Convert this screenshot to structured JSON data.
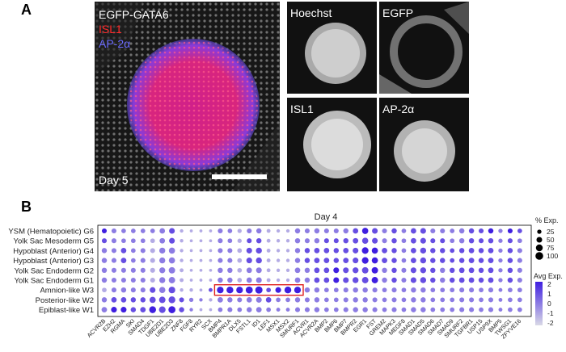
{
  "panelA": {
    "label": "A",
    "main": {
      "lines": [
        "EGFP-GATA6",
        "ISL1",
        "AP-2α"
      ],
      "line_colors": [
        "#ffffff",
        "#ff2a2a",
        "#6a6aff"
      ],
      "day": "Day 5"
    },
    "tiles": [
      "Hoechst",
      "EGFP",
      "ISL1",
      "AP-2α"
    ]
  },
  "panelB": {
    "label": "B",
    "title": "Day 4",
    "size_legend": {
      "title": "% Exp.",
      "values": [
        "25",
        "50",
        "75",
        "100"
      ]
    },
    "color_legend": {
      "title": "Avg Exp.",
      "ticks": [
        "2",
        "1",
        "0",
        "-1",
        "-2"
      ],
      "low_color": "#d9d9e6",
      "high_color": "#3f1fe0"
    },
    "highlight_color": "#e02020"
  },
  "chart_data": {
    "type": "dot-plot",
    "title": "Day 4",
    "rows": [
      "YSM (Hematopoietic) G6",
      "Yolk Sac Mesoderm G5",
      "Hypoblast (Anterior) G4",
      "Hypoblast (Anterior) G3",
      "Yolk Sac Endoderm G2",
      "Yolk Sac Endoderm G1",
      "Amnion-like W3",
      "Posterior-like W2",
      "Epiblast-like W1"
    ],
    "genes": [
      "ACVR2B",
      "EZH2",
      "RGMA",
      "SKI",
      "SMAD4",
      "TDGF1",
      "UBE2D1",
      "UBE2D3",
      "ZNF8",
      "FGF8",
      "RYR2",
      "SCX",
      "BMP4",
      "BMPR1A",
      "DLX5",
      "FSTL1",
      "ID1",
      "LEF1",
      "MSX1",
      "MSX2",
      "SMURF1",
      "ACVR1",
      "ACVR2A",
      "BMP2",
      "BMP6",
      "BMP7",
      "BMPR2",
      "EGR1",
      "FST",
      "GREM2",
      "MAPK3",
      "MEGF8",
      "SMAD1",
      "SMAD5",
      "SMAD6",
      "SMAD7",
      "SMAD9",
      "SMURF2",
      "TGFBR1",
      "USP15",
      "USP9X",
      "BMP5",
      "TWSG1",
      "ZFYVE16"
    ],
    "highlight": {
      "row": "Amnion-like W3",
      "genes": [
        "BMP4",
        "SMURF1"
      ]
    },
    "size_legend_pct": [
      25,
      50,
      75,
      100
    ],
    "color_range": [
      -2,
      2
    ],
    "pct_expressed": [
      [
        35,
        35,
        30,
        30,
        30,
        30,
        45,
        50,
        15,
        10,
        10,
        10,
        35,
        30,
        25,
        35,
        40,
        20,
        15,
        15,
        40,
        35,
        40,
        35,
        35,
        40,
        45,
        60,
        50,
        35,
        40,
        30,
        45,
        50,
        35,
        35,
        30,
        40,
        40,
        35,
        40,
        25,
        35,
        30
      ],
      [
        35,
        35,
        30,
        30,
        30,
        30,
        45,
        50,
        15,
        10,
        10,
        10,
        35,
        30,
        25,
        35,
        40,
        20,
        15,
        15,
        40,
        35,
        40,
        35,
        35,
        40,
        45,
        60,
        50,
        35,
        40,
        30,
        45,
        50,
        35,
        35,
        30,
        40,
        40,
        35,
        40,
        25,
        35,
        30
      ],
      [
        40,
        35,
        45,
        30,
        35,
        35,
        55,
        60,
        15,
        10,
        10,
        10,
        35,
        35,
        30,
        50,
        55,
        20,
        15,
        15,
        40,
        40,
        45,
        45,
        40,
        45,
        50,
        70,
        60,
        45,
        40,
        30,
        45,
        55,
        40,
        40,
        30,
        40,
        45,
        40,
        45,
        25,
        40,
        35
      ],
      [
        40,
        35,
        45,
        30,
        35,
        35,
        55,
        60,
        15,
        10,
        10,
        10,
        35,
        35,
        30,
        50,
        55,
        20,
        15,
        15,
        40,
        40,
        45,
        45,
        40,
        45,
        50,
        70,
        60,
        45,
        40,
        30,
        45,
        55,
        40,
        40,
        30,
        40,
        45,
        40,
        45,
        25,
        40,
        35
      ],
      [
        40,
        35,
        35,
        35,
        35,
        35,
        55,
        65,
        20,
        10,
        10,
        10,
        40,
        40,
        30,
        45,
        50,
        20,
        15,
        15,
        45,
        40,
        45,
        45,
        50,
        50,
        55,
        65,
        65,
        40,
        40,
        35,
        50,
        55,
        40,
        40,
        40,
        45,
        45,
        40,
        45,
        25,
        40,
        35
      ],
      [
        40,
        35,
        35,
        35,
        35,
        35,
        55,
        65,
        20,
        10,
        10,
        10,
        40,
        40,
        30,
        45,
        50,
        20,
        15,
        15,
        45,
        40,
        45,
        45,
        50,
        50,
        55,
        65,
        65,
        40,
        40,
        35,
        50,
        55,
        40,
        40,
        40,
        45,
        45,
        40,
        45,
        25,
        40,
        35
      ],
      [
        30,
        35,
        40,
        35,
        35,
        50,
        60,
        70,
        15,
        15,
        10,
        20,
        70,
        75,
        70,
        80,
        85,
        30,
        50,
        75,
        70,
        40,
        40,
        30,
        30,
        35,
        40,
        40,
        35,
        30,
        35,
        30,
        40,
        40,
        30,
        30,
        30,
        35,
        35,
        30,
        35,
        20,
        30,
        30
      ],
      [
        40,
        45,
        45,
        40,
        40,
        60,
        65,
        75,
        35,
        25,
        15,
        15,
        45,
        40,
        35,
        45,
        50,
        45,
        30,
        30,
        40,
        35,
        40,
        30,
        30,
        35,
        40,
        40,
        35,
        30,
        35,
        30,
        40,
        40,
        30,
        30,
        30,
        35,
        35,
        30,
        35,
        20,
        30,
        30
      ],
      [
        45,
        50,
        50,
        40,
        45,
        75,
        70,
        80,
        40,
        15,
        10,
        10,
        30,
        35,
        30,
        40,
        45,
        30,
        20,
        20,
        35,
        35,
        40,
        30,
        30,
        35,
        40,
        40,
        35,
        30,
        35,
        30,
        40,
        40,
        30,
        30,
        30,
        35,
        35,
        30,
        35,
        20,
        30,
        30
      ]
    ],
    "avg_exp": [
      [
        2,
        0,
        0,
        0,
        0,
        0,
        0,
        1,
        -1,
        -1,
        -1,
        -1,
        0,
        0,
        -1,
        0,
        0,
        -1,
        -1,
        -1,
        0,
        0,
        0,
        0,
        0,
        0,
        1,
        2,
        1,
        0,
        1,
        0,
        1,
        1,
        0,
        0,
        0,
        0,
        1,
        1,
        2,
        0,
        2,
        1
      ],
      [
        1,
        0,
        0,
        0,
        0,
        -1,
        0,
        1,
        -1,
        -1,
        -1,
        -1,
        0,
        0,
        -1,
        1,
        1,
        -1,
        -1,
        -1,
        0,
        0,
        0,
        1,
        1,
        1,
        1,
        1,
        1,
        0,
        1,
        0,
        1,
        1,
        1,
        1,
        0,
        0,
        1,
        1,
        1,
        0,
        1,
        0
      ],
      [
        0,
        0,
        1,
        0,
        0,
        -1,
        0,
        0,
        -1,
        -1,
        -1,
        -1,
        0,
        0,
        -1,
        1,
        1,
        -1,
        -1,
        -1,
        0,
        1,
        1,
        1,
        1,
        1,
        1,
        2,
        2,
        1,
        1,
        0,
        1,
        1,
        1,
        1,
        1,
        1,
        1,
        1,
        1,
        0,
        1,
        0
      ],
      [
        0,
        0,
        1,
        0,
        0,
        -1,
        0,
        0,
        -1,
        -1,
        -1,
        -1,
        0,
        0,
        -1,
        1,
        1,
        -1,
        -1,
        -1,
        0,
        1,
        1,
        1,
        1,
        1,
        1,
        2,
        2,
        1,
        1,
        0,
        1,
        1,
        1,
        1,
        1,
        1,
        1,
        1,
        1,
        0,
        1,
        0
      ],
      [
        0,
        0,
        0,
        0,
        0,
        -1,
        0,
        0,
        -1,
        -1,
        -1,
        -1,
        0,
        0,
        -1,
        0,
        0,
        -1,
        -1,
        -1,
        0,
        0,
        1,
        1,
        2,
        1,
        1,
        1,
        2,
        0,
        1,
        0,
        1,
        1,
        1,
        0,
        1,
        1,
        1,
        1,
        1,
        0,
        1,
        0
      ],
      [
        0,
        0,
        0,
        0,
        0,
        -1,
        0,
        0,
        -1,
        -1,
        -1,
        -1,
        0,
        0,
        -1,
        0,
        0,
        -1,
        -1,
        -1,
        0,
        0,
        1,
        1,
        2,
        1,
        1,
        1,
        2,
        0,
        1,
        0,
        1,
        1,
        1,
        0,
        1,
        1,
        1,
        1,
        1,
        0,
        1,
        0
      ],
      [
        -1,
        0,
        0,
        0,
        0,
        1,
        0,
        1,
        -1,
        -1,
        -1,
        1,
        2,
        2,
        2,
        2,
        2,
        1,
        2,
        2,
        2,
        0,
        0,
        0,
        0,
        0,
        0,
        0,
        0,
        0,
        0,
        0,
        0,
        0,
        0,
        0,
        0,
        0,
        0,
        0,
        0,
        0,
        0,
        0
      ],
      [
        0,
        1,
        1,
        1,
        1,
        1,
        1,
        1,
        1,
        0,
        0,
        -1,
        0,
        0,
        0,
        0,
        0,
        1,
        0,
        0,
        0,
        0,
        0,
        0,
        0,
        0,
        0,
        0,
        0,
        0,
        0,
        0,
        0,
        0,
        0,
        0,
        0,
        0,
        0,
        0,
        0,
        0,
        0,
        0
      ],
      [
        0,
        2,
        2,
        1,
        1,
        2,
        1,
        2,
        1,
        0,
        -1,
        -1,
        0,
        0,
        0,
        0,
        0,
        0,
        0,
        0,
        0,
        0,
        0,
        0,
        0,
        0,
        0,
        0,
        0,
        0,
        0,
        0,
        0,
        0,
        0,
        0,
        0,
        0,
        0,
        0,
        0,
        0,
        0,
        0
      ]
    ]
  }
}
